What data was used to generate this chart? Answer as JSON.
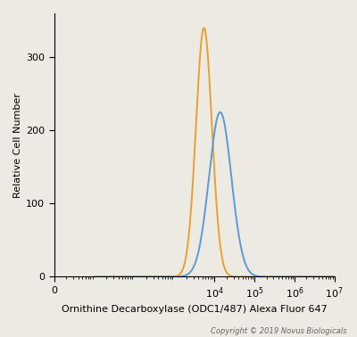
{
  "xlabel": "Ornithine Decarboxylase (ODC1/487) Alexa Fluor 647",
  "ylabel": "Relative Cell Number",
  "copyright": "Copyright © 2019 Novus Biologicals",
  "xlim_log": [
    1,
    7
  ],
  "ylim": [
    0,
    360
  ],
  "yticks": [
    0,
    100,
    200,
    300
  ],
  "orange_peak_x": 5500,
  "orange_peak_y": 340,
  "orange_sigma": 0.2,
  "blue_peak_x": 14000,
  "blue_peak_y": 225,
  "blue_sigma": 0.28,
  "orange_color": "#E8A030",
  "blue_color": "#5B9BD5",
  "background_color": "#EDE9E3",
  "linewidth": 1.4,
  "xtick_positions": [
    1,
    10000,
    100000,
    1000000,
    10000000
  ],
  "xtick_labels": [
    "0",
    "10^4",
    "10^5",
    "10^6",
    "10^7"
  ]
}
